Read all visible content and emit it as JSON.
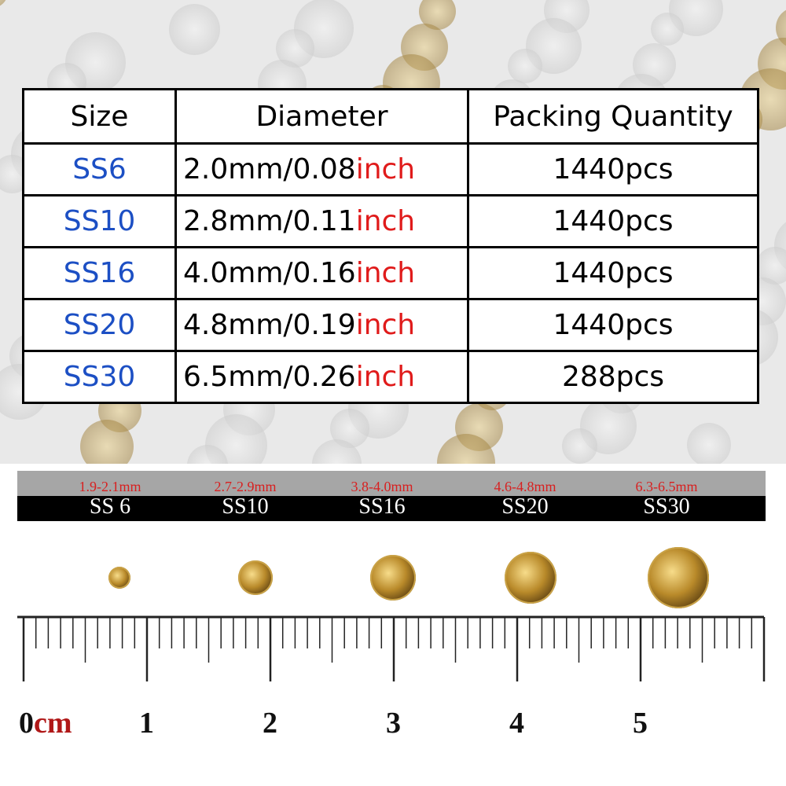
{
  "table": {
    "headers": [
      "Size",
      "Diameter",
      "Packing Quantity"
    ],
    "rows": [
      {
        "size": "SS6",
        "diameter": "2.0mm/0.08",
        "unit": "inch",
        "qty": "1440pcs"
      },
      {
        "size": "SS10",
        "diameter": "2.8mm/0.11",
        "unit": "inch",
        "qty": "1440pcs"
      },
      {
        "size": "SS16",
        "diameter": "4.0mm/0.16",
        "unit": "inch",
        "qty": "1440pcs"
      },
      {
        "size": "SS20",
        "diameter": "4.8mm/0.19",
        "unit": "inch",
        "qty": "1440pcs"
      },
      {
        "size": "SS30",
        "diameter": "6.5mm/0.26",
        "unit": "inch",
        "qty": "288pcs"
      }
    ]
  },
  "size_bar": [
    {
      "range": "1.9-2.1mm",
      "name": "SS 6"
    },
    {
      "range": "2.7-2.9mm",
      "name": "SS10"
    },
    {
      "range": "3.8-4.0mm",
      "name": "SS16"
    },
    {
      "range": "4.6-4.8mm",
      "name": "SS20"
    },
    {
      "range": "6.3-6.5mm",
      "name": "SS30"
    }
  ],
  "ruler": {
    "zero": "0",
    "unit": "cm",
    "labels": [
      "1",
      "2",
      "3",
      "4",
      "5"
    ]
  },
  "colors": {
    "size_text": "#1c4fc4",
    "inch_text": "#e01b1b",
    "gem": "#c9a247"
  }
}
